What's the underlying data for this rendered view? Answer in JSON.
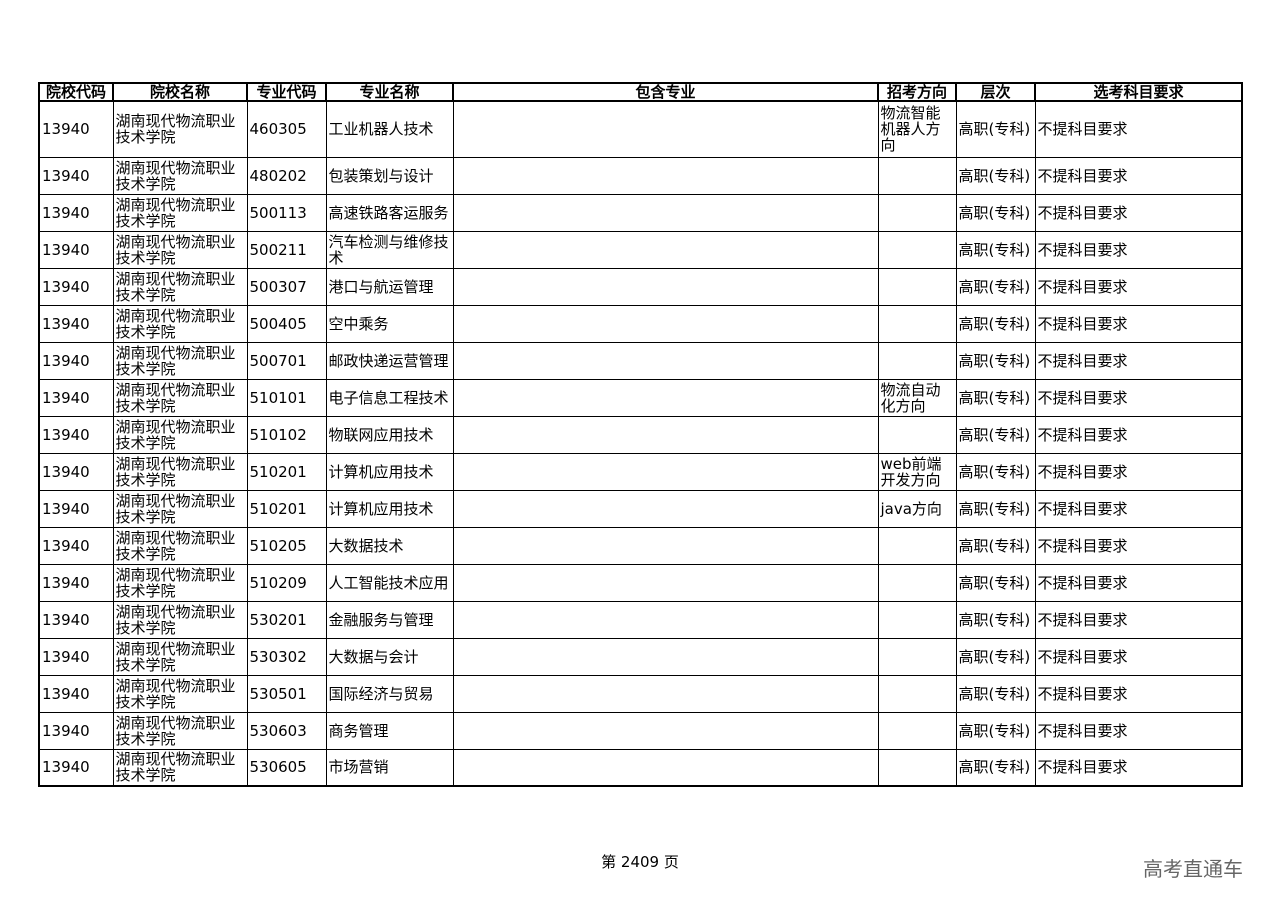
{
  "headers": [
    "院校代码",
    "院校名称",
    "专业代码",
    "专业名称",
    "包含专业",
    "招考方向",
    "层次",
    "选考科目要求"
  ],
  "rows": [
    [
      "13940",
      "湖南现代物流职业技术学院",
      "460305",
      "工业机器人技术",
      "",
      "物流智能机器人方向",
      "高职(专科)",
      "不提科目要求"
    ],
    [
      "13940",
      "湖南现代物流职业技术学院",
      "480202",
      "包装策划与设计",
      "",
      "",
      "高职(专科)",
      "不提科目要求"
    ],
    [
      "13940",
      "湖南现代物流职业技术学院",
      "500113",
      "高速铁路客运服务",
      "",
      "",
      "高职(专科)",
      "不提科目要求"
    ],
    [
      "13940",
      "湖南现代物流职业技术学院",
      "500211",
      "汽车检测与维修技术",
      "",
      "",
      "高职(专科)",
      "不提科目要求"
    ],
    [
      "13940",
      "湖南现代物流职业技术学院",
      "500307",
      "港口与航运管理",
      "",
      "",
      "高职(专科)",
      "不提科目要求"
    ],
    [
      "13940",
      "湖南现代物流职业技术学院",
      "500405",
      "空中乘务",
      "",
      "",
      "高职(专科)",
      "不提科目要求"
    ],
    [
      "13940",
      "湖南现代物流职业技术学院",
      "500701",
      "邮政快递运营管理",
      "",
      "",
      "高职(专科)",
      "不提科目要求"
    ],
    [
      "13940",
      "湖南现代物流职业技术学院",
      "510101",
      "电子信息工程技术",
      "",
      "物流自动化方向",
      "高职(专科)",
      "不提科目要求"
    ],
    [
      "13940",
      "湖南现代物流职业技术学院",
      "510102",
      "物联网应用技术",
      "",
      "",
      "高职(专科)",
      "不提科目要求"
    ],
    [
      "13940",
      "湖南现代物流职业技术学院",
      "510201",
      "计算机应用技术",
      "",
      "web前端开发方向",
      "高职(专科)",
      "不提科目要求"
    ],
    [
      "13940",
      "湖南现代物流职业技术学院",
      "510201",
      "计算机应用技术",
      "",
      "java方向",
      "高职(专科)",
      "不提科目要求"
    ],
    [
      "13940",
      "湖南现代物流职业技术学院",
      "510205",
      "大数据技术",
      "",
      "",
      "高职(专科)",
      "不提科目要求"
    ],
    [
      "13940",
      "湖南现代物流职业技术学院",
      "510209",
      "人工智能技术应用",
      "",
      "",
      "高职(专科)",
      "不提科目要求"
    ],
    [
      "13940",
      "湖南现代物流职业技术学院",
      "530201",
      "金融服务与管理",
      "",
      "",
      "高职(专科)",
      "不提科目要求"
    ],
    [
      "13940",
      "湖南现代物流职业技术学院",
      "530302",
      "大数据与会计",
      "",
      "",
      "高职(专科)",
      "不提科目要求"
    ],
    [
      "13940",
      "湖南现代物流职业技术学院",
      "530501",
      "国际经济与贸易",
      "",
      "",
      "高职(专科)",
      "不提科目要求"
    ],
    [
      "13940",
      "湖南现代物流职业技术学院",
      "530603",
      "商务管理",
      "",
      "",
      "高职(专科)",
      "不提科目要求"
    ],
    [
      "13940",
      "湖南现代物流职业技术学院",
      "530605",
      "市场营销",
      "",
      "",
      "高职(专科)",
      "不提科目要求"
    ]
  ],
  "footer": "第 2409 页",
  "watermark": "高考直通车"
}
